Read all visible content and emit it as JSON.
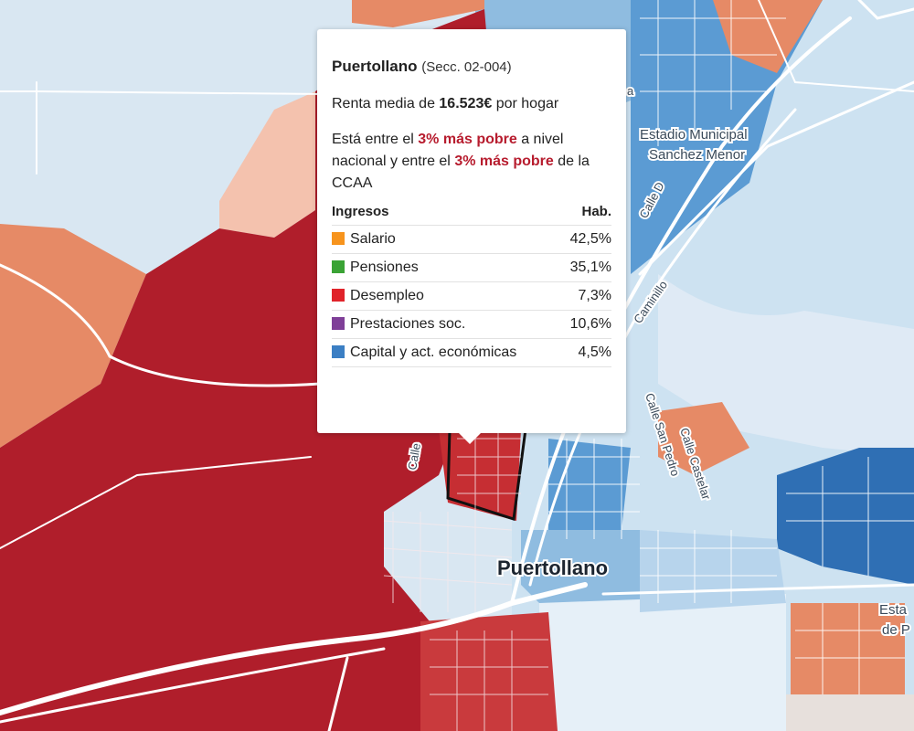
{
  "map": {
    "labels": {
      "city": "Puertollano",
      "stadium_line1": "Estadio Municipal",
      "stadium_line2": "Sanchez Menor",
      "street_calle_d": "Calle D",
      "street_caminillo": "Caminillo",
      "street_san_pedro": "Calle San Pedro",
      "street_castelar": "Calle Castelar",
      "street_calle_partial": "Calle",
      "edge_esta": "Esta",
      "edge_de_p": "de P",
      "edge_fragment": "a"
    },
    "colors": {
      "dark_red": "#b01e2b",
      "red": "#c93a3d",
      "salmon": "#e68a66",
      "light_salmon": "#f4c2ae",
      "light_blue": "#cde2f1",
      "pale_blue": "#e6f0f8",
      "mid_blue": "#8fbce0",
      "blue": "#5b9bd3",
      "dark_blue": "#2f6fb4",
      "road": "#ffffff"
    }
  },
  "tooltip": {
    "title": "Puertollano",
    "code": "(Secc. 02-004)",
    "income_prefix": "Renta media de ",
    "income_value": "16.523€",
    "income_suffix": " por hogar",
    "rank_p1": "Está entre el ",
    "rank_h1": "3% más pobre",
    "rank_p2": " a nivel nacional y entre el ",
    "rank_h2": "3% más pobre",
    "rank_p3": " de la CCAA",
    "table": {
      "col_income": "Ingresos",
      "col_share": "Hab.",
      "rows": [
        {
          "label": "Salario",
          "value": "42,5%",
          "color": "#f7941d"
        },
        {
          "label": "Pensiones",
          "value": "35,1%",
          "color": "#3aa335"
        },
        {
          "label": "Desempleo",
          "value": "7,3%",
          "color": "#e0232a"
        },
        {
          "label": "Prestaciones soc.",
          "value": "10,6%",
          "color": "#7f3f98"
        },
        {
          "label": "Capital y act. económicas",
          "value": "4,5%",
          "color": "#3b7fc4"
        }
      ]
    }
  }
}
